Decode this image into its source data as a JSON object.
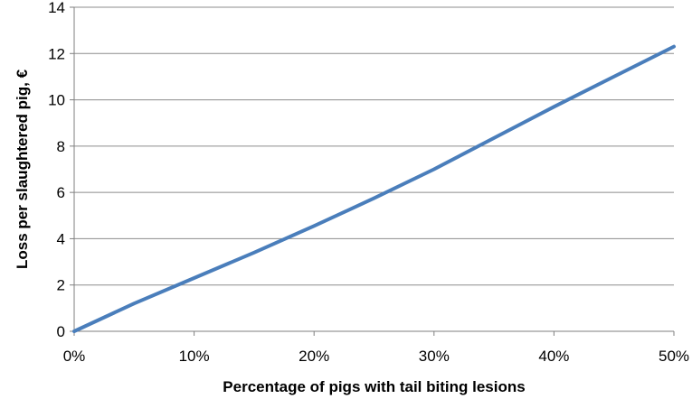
{
  "chart_data": {
    "type": "line",
    "title": "",
    "xlabel": "Percentage of pigs with tail biting lesions",
    "ylabel": "Loss per slaughtered pig, €",
    "x_ticks": [
      "0%",
      "10%",
      "20%",
      "30%",
      "40%",
      "50%"
    ],
    "y_ticks": [
      "0",
      "2",
      "4",
      "6",
      "8",
      "10",
      "12",
      "14"
    ],
    "xlim": [
      0,
      50
    ],
    "ylim": [
      0,
      14
    ],
    "grid": "horizontal",
    "legend": "none",
    "series": [
      {
        "color": "#4a7ebb",
        "x": [
          0,
          5,
          10,
          15,
          20,
          25,
          30,
          35,
          40,
          45,
          50
        ],
        "y": [
          0,
          1.2,
          2.3,
          3.4,
          4.55,
          5.75,
          7.0,
          8.35,
          9.7,
          11.0,
          12.3
        ]
      }
    ]
  }
}
